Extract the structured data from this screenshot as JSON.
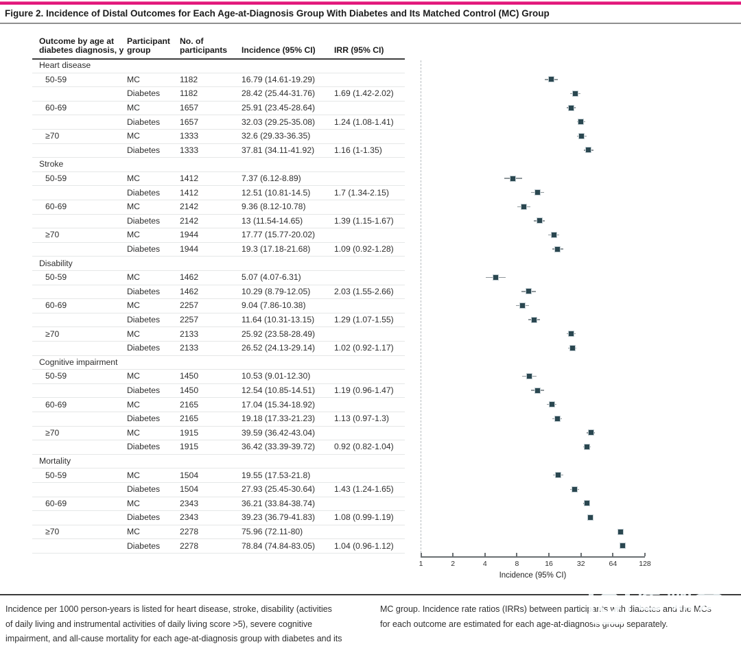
{
  "figure": {
    "title": "Figure 2. Incidence of Distal Outcomes for Each Age-at-Diagnosis Group With Diabetes and Its Matched Control (MC) Group",
    "accent_color": "#e01179"
  },
  "table": {
    "column_headers": [
      "Outcome by age at\ndiabetes diagnosis, y",
      "Participant\ngroup",
      "No. of\nparticipants",
      "Incidence (95% CI)",
      "IRR (95% CI)"
    ]
  },
  "chart_data": {
    "type": "scatter",
    "subtype": "forest-plot",
    "xlabel": "Incidence (95% CI)",
    "x_scale": "log2",
    "xlim": [
      1,
      128
    ],
    "x_ticks": [
      1,
      2,
      4,
      8,
      16,
      32,
      64,
      128
    ],
    "marker_color": "#2a4750",
    "sections": [
      {
        "outcome": "Heart disease",
        "rows": [
          {
            "age": "50-59",
            "group": "MC",
            "n": "1182",
            "incidence": 16.79,
            "ci_low": 14.61,
            "ci_high": 19.29,
            "incidence_label": "16.79 (14.61-19.29)",
            "irr_label": ""
          },
          {
            "age": "",
            "group": "Diabetes",
            "n": "1182",
            "incidence": 28.42,
            "ci_low": 25.44,
            "ci_high": 31.76,
            "incidence_label": "28.42 (25.44-31.76)",
            "irr_label": "1.69 (1.42-2.02)"
          },
          {
            "age": "60-69",
            "group": "MC",
            "n": "1657",
            "incidence": 25.91,
            "ci_low": 23.45,
            "ci_high": 28.64,
            "incidence_label": "25.91 (23.45-28.64)",
            "irr_label": ""
          },
          {
            "age": "",
            "group": "Diabetes",
            "n": "1657",
            "incidence": 32.03,
            "ci_low": 29.25,
            "ci_high": 35.08,
            "incidence_label": "32.03 (29.25-35.08)",
            "irr_label": "1.24 (1.08-1.41)"
          },
          {
            "age": "≥70",
            "group": "MC",
            "n": "1333",
            "incidence": 32.6,
            "ci_low": 29.33,
            "ci_high": 36.35,
            "incidence_label": "32.6 (29.33-36.35)",
            "irr_label": ""
          },
          {
            "age": "",
            "group": "Diabetes",
            "n": "1333",
            "incidence": 37.81,
            "ci_low": 34.11,
            "ci_high": 41.92,
            "incidence_label": "37.81 (34.11-41.92)",
            "irr_label": "1.16 (1-1.35)"
          }
        ]
      },
      {
        "outcome": "Stroke",
        "rows": [
          {
            "age": "50-59",
            "group": "MC",
            "n": "1412",
            "incidence": 7.37,
            "ci_low": 6.12,
            "ci_high": 8.89,
            "incidence_label": "7.37 (6.12-8.89)",
            "irr_label": ""
          },
          {
            "age": "",
            "group": "Diabetes",
            "n": "1412",
            "incidence": 12.51,
            "ci_low": 10.81,
            "ci_high": 14.5,
            "incidence_label": "12.51 (10.81-14.5)",
            "irr_label": "1.7 (1.34-2.15)"
          },
          {
            "age": "60-69",
            "group": "MC",
            "n": "2142",
            "incidence": 9.36,
            "ci_low": 8.12,
            "ci_high": 10.78,
            "incidence_label": "9.36 (8.12-10.78)",
            "irr_label": ""
          },
          {
            "age": "",
            "group": "Diabetes",
            "n": "2142",
            "incidence": 13,
            "ci_low": 11.54,
            "ci_high": 14.65,
            "incidence_label": "13 (11.54-14.65)",
            "irr_label": "1.39 (1.15-1.67)"
          },
          {
            "age": "≥70",
            "group": "MC",
            "n": "1944",
            "incidence": 17.77,
            "ci_low": 15.77,
            "ci_high": 20.02,
            "incidence_label": "17.77 (15.77-20.02)",
            "irr_label": ""
          },
          {
            "age": "",
            "group": "Diabetes",
            "n": "1944",
            "incidence": 19.3,
            "ci_low": 17.18,
            "ci_high": 21.68,
            "incidence_label": "19.3 (17.18-21.68)",
            "irr_label": "1.09 (0.92-1.28)"
          }
        ]
      },
      {
        "outcome": "Disability",
        "rows": [
          {
            "age": "50-59",
            "group": "MC",
            "n": "1462",
            "incidence": 5.07,
            "ci_low": 4.07,
            "ci_high": 6.31,
            "incidence_label": "5.07 (4.07-6.31)",
            "irr_label": ""
          },
          {
            "age": "",
            "group": "Diabetes",
            "n": "1462",
            "incidence": 10.29,
            "ci_low": 8.79,
            "ci_high": 12.05,
            "incidence_label": "10.29 (8.79-12.05)",
            "irr_label": "2.03 (1.55-2.66)"
          },
          {
            "age": "60-69",
            "group": "MC",
            "n": "2257",
            "incidence": 9.04,
            "ci_low": 7.86,
            "ci_high": 10.38,
            "incidence_label": "9.04 (7.86-10.38)",
            "irr_label": ""
          },
          {
            "age": "",
            "group": "Diabetes",
            "n": "2257",
            "incidence": 11.64,
            "ci_low": 10.31,
            "ci_high": 13.15,
            "incidence_label": "11.64 (10.31-13.15)",
            "irr_label": "1.29 (1.07-1.55)"
          },
          {
            "age": "≥70",
            "group": "MC",
            "n": "2133",
            "incidence": 25.92,
            "ci_low": 23.58,
            "ci_high": 28.49,
            "incidence_label": "25.92 (23.58-28.49)",
            "irr_label": ""
          },
          {
            "age": "",
            "group": "Diabetes",
            "n": "2133",
            "incidence": 26.52,
            "ci_low": 24.13,
            "ci_high": 29.14,
            "incidence_label": "26.52 (24.13-29.14)",
            "irr_label": "1.02 (0.92-1.17)"
          }
        ]
      },
      {
        "outcome": "Cognitive impairment",
        "rows": [
          {
            "age": "50-59",
            "group": "MC",
            "n": "1450",
            "incidence": 10.53,
            "ci_low": 9.01,
            "ci_high": 12.3,
            "incidence_label": "10.53 (9.01-12.30)",
            "irr_label": ""
          },
          {
            "age": "",
            "group": "Diabetes",
            "n": "1450",
            "incidence": 12.54,
            "ci_low": 10.85,
            "ci_high": 14.51,
            "incidence_label": "12.54 (10.85-14.51)",
            "irr_label": "1.19 (0.96-1.47)"
          },
          {
            "age": "60-69",
            "group": "MC",
            "n": "2165",
            "incidence": 17.04,
            "ci_low": 15.34,
            "ci_high": 18.92,
            "incidence_label": "17.04 (15.34-18.92)",
            "irr_label": ""
          },
          {
            "age": "",
            "group": "Diabetes",
            "n": "2165",
            "incidence": 19.18,
            "ci_low": 17.33,
            "ci_high": 21.23,
            "incidence_label": "19.18 (17.33-21.23)",
            "irr_label": "1.13 (0.97-1.3)"
          },
          {
            "age": "≥70",
            "group": "MC",
            "n": "1915",
            "incidence": 39.59,
            "ci_low": 36.42,
            "ci_high": 43.04,
            "incidence_label": "39.59 (36.42-43.04)",
            "irr_label": ""
          },
          {
            "age": "",
            "group": "Diabetes",
            "n": "1915",
            "incidence": 36.42,
            "ci_low": 33.39,
            "ci_high": 39.72,
            "incidence_label": "36.42 (33.39-39.72)",
            "irr_label": "0.92 (0.82-1.04)"
          }
        ]
      },
      {
        "outcome": "Mortality",
        "rows": [
          {
            "age": "50-59",
            "group": "MC",
            "n": "1504",
            "incidence": 19.55,
            "ci_low": 17.53,
            "ci_high": 21.8,
            "incidence_label": "19.55 (17.53-21.8)",
            "irr_label": ""
          },
          {
            "age": "",
            "group": "Diabetes",
            "n": "1504",
            "incidence": 27.93,
            "ci_low": 25.45,
            "ci_high": 30.64,
            "incidence_label": "27.93 (25.45-30.64)",
            "irr_label": "1.43 (1.24-1.65)"
          },
          {
            "age": "60-69",
            "group": "MC",
            "n": "2343",
            "incidence": 36.21,
            "ci_low": 33.84,
            "ci_high": 38.74,
            "incidence_label": "36.21 (33.84-38.74)",
            "irr_label": ""
          },
          {
            "age": "",
            "group": "Diabetes",
            "n": "2343",
            "incidence": 39.23,
            "ci_low": 36.79,
            "ci_high": 41.83,
            "incidence_label": "39.23 (36.79-41.83)",
            "irr_label": "1.08 (0.99-1.19)"
          },
          {
            "age": "≥70",
            "group": "MC",
            "n": "2278",
            "incidence": 75.96,
            "ci_low": 72.11,
            "ci_high": 80,
            "incidence_label": "75.96 (72.11-80)",
            "irr_label": ""
          },
          {
            "age": "",
            "group": "Diabetes",
            "n": "2278",
            "incidence": 78.84,
            "ci_low": 74.84,
            "ci_high": 83.05,
            "incidence_label": "78.84 (74.84-83.05)",
            "irr_label": "1.04 (0.96-1.12)"
          }
        ]
      }
    ]
  },
  "footnotes": {
    "left_lines": [
      "Incidence per 1000 person-years is listed for heart disease, stroke, disability (activities",
      "of daily living and instrumental activities of daily living score >5), severe cognitive",
      "impairment, and all-cause mortality for each age-at-diagnosis group with diabetes and its"
    ],
    "right_lines": [
      "MC group. Incidence rate ratios (IRRs) between participants with diabetes and the MCs",
      "for each outcome are estimated for each age-at-diagnosis group separately."
    ]
  },
  "watermark": {
    "text": "医咖会"
  }
}
